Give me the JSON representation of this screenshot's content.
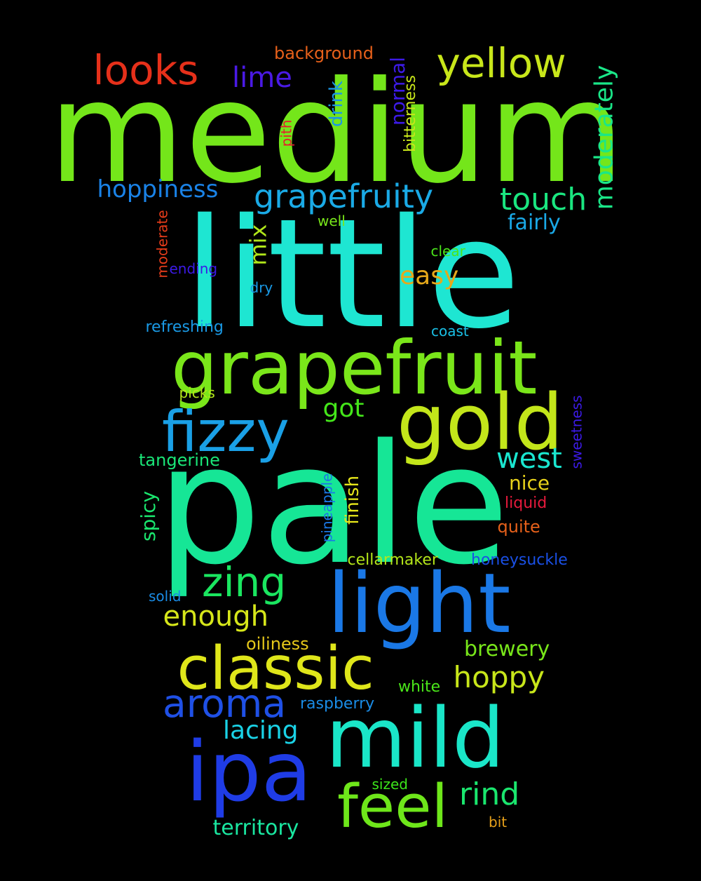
{
  "words": [
    {
      "text": "medium",
      "color": "#74e61a"
    },
    {
      "text": "little",
      "color": "#1ee6d2"
    },
    {
      "text": "pale",
      "color": "#16e696"
    },
    {
      "text": "grapefruit",
      "color": "#7ae61a"
    },
    {
      "text": "light",
      "color": "#1a78e6"
    },
    {
      "text": "mild",
      "color": "#1ae6c8"
    },
    {
      "text": "gold",
      "color": "#c3e61a"
    },
    {
      "text": "ipa",
      "color": "#1f3ce6"
    },
    {
      "text": "classic",
      "color": "#dfe61a"
    },
    {
      "text": "fizzy",
      "color": "#1aa0e6"
    },
    {
      "text": "feel",
      "color": "#6ee61a"
    },
    {
      "text": "yellow",
      "color": "#c8e61a"
    },
    {
      "text": "looks",
      "color": "#e6301a"
    },
    {
      "text": "grapefruity",
      "color": "#1aaae6"
    },
    {
      "text": "zing",
      "color": "#1ae660"
    },
    {
      "text": "aroma",
      "color": "#1f50e6"
    },
    {
      "text": "moderately",
      "color": "#1ae688"
    },
    {
      "text": "touch",
      "color": "#1ae680"
    },
    {
      "text": "rind",
      "color": "#1ae66e"
    },
    {
      "text": "hoppy",
      "color": "#c8e61a"
    },
    {
      "text": "hoppiness",
      "color": "#1a82e6"
    },
    {
      "text": "west",
      "color": "#1ae6d0"
    },
    {
      "text": "enough",
      "color": "#d6e61a"
    },
    {
      "text": "lime",
      "color": "#4a1ae6"
    },
    {
      "text": "lacing",
      "color": "#1ad2e6"
    },
    {
      "text": "easy",
      "color": "#e6a81a"
    },
    {
      "text": "mix",
      "color": "#b0e61a"
    },
    {
      "text": "got",
      "color": "#44e61a"
    },
    {
      "text": "brewery",
      "color": "#78e61a"
    },
    {
      "text": "territory",
      "color": "#1ae6a0"
    },
    {
      "text": "fairly",
      "color": "#1aa8e6"
    },
    {
      "text": "nice",
      "color": "#e6d01a"
    },
    {
      "text": "normal",
      "color": "#3c1ae6"
    },
    {
      "text": "finish",
      "color": "#e6e61a"
    },
    {
      "text": "spicy",
      "color": "#1ae66e"
    },
    {
      "text": "drink",
      "color": "#1a96e6"
    },
    {
      "text": "background",
      "color": "#e6601a"
    },
    {
      "text": "tangerine",
      "color": "#1ae678"
    },
    {
      "text": "oiliness",
      "color": "#e6c81a"
    },
    {
      "text": "quite",
      "color": "#e6601a"
    },
    {
      "text": "bitterness",
      "color": "#c8e61a"
    },
    {
      "text": "cellarmaker",
      "color": "#b4e61a"
    },
    {
      "text": "honeysuckle",
      "color": "#1a50e6"
    },
    {
      "text": "raspberry",
      "color": "#1a8ce6"
    },
    {
      "text": "white",
      "color": "#4ae61a"
    },
    {
      "text": "liquid",
      "color": "#e61a3c"
    },
    {
      "text": "refreshing",
      "color": "#1a9ae6"
    },
    {
      "text": "moderate",
      "color": "#e63c1a"
    },
    {
      "text": "sweetness",
      "color": "#3c1ae6"
    },
    {
      "text": "pineapple",
      "color": "#1a78e6"
    },
    {
      "text": "solid",
      "color": "#1a8ce6"
    },
    {
      "text": "sized",
      "color": "#3ce61a"
    },
    {
      "text": "bit",
      "color": "#e6a01a"
    },
    {
      "text": "well",
      "color": "#78e61a"
    },
    {
      "text": "clear",
      "color": "#4ae61a"
    },
    {
      "text": "ending",
      "color": "#3c1ae6"
    },
    {
      "text": "dry",
      "color": "#1a9ae6"
    },
    {
      "text": "coast",
      "color": "#1ac0e6"
    },
    {
      "text": "pith",
      "color": "#e61a2e"
    },
    {
      "text": "picks",
      "color": "#b4e61a"
    }
  ]
}
